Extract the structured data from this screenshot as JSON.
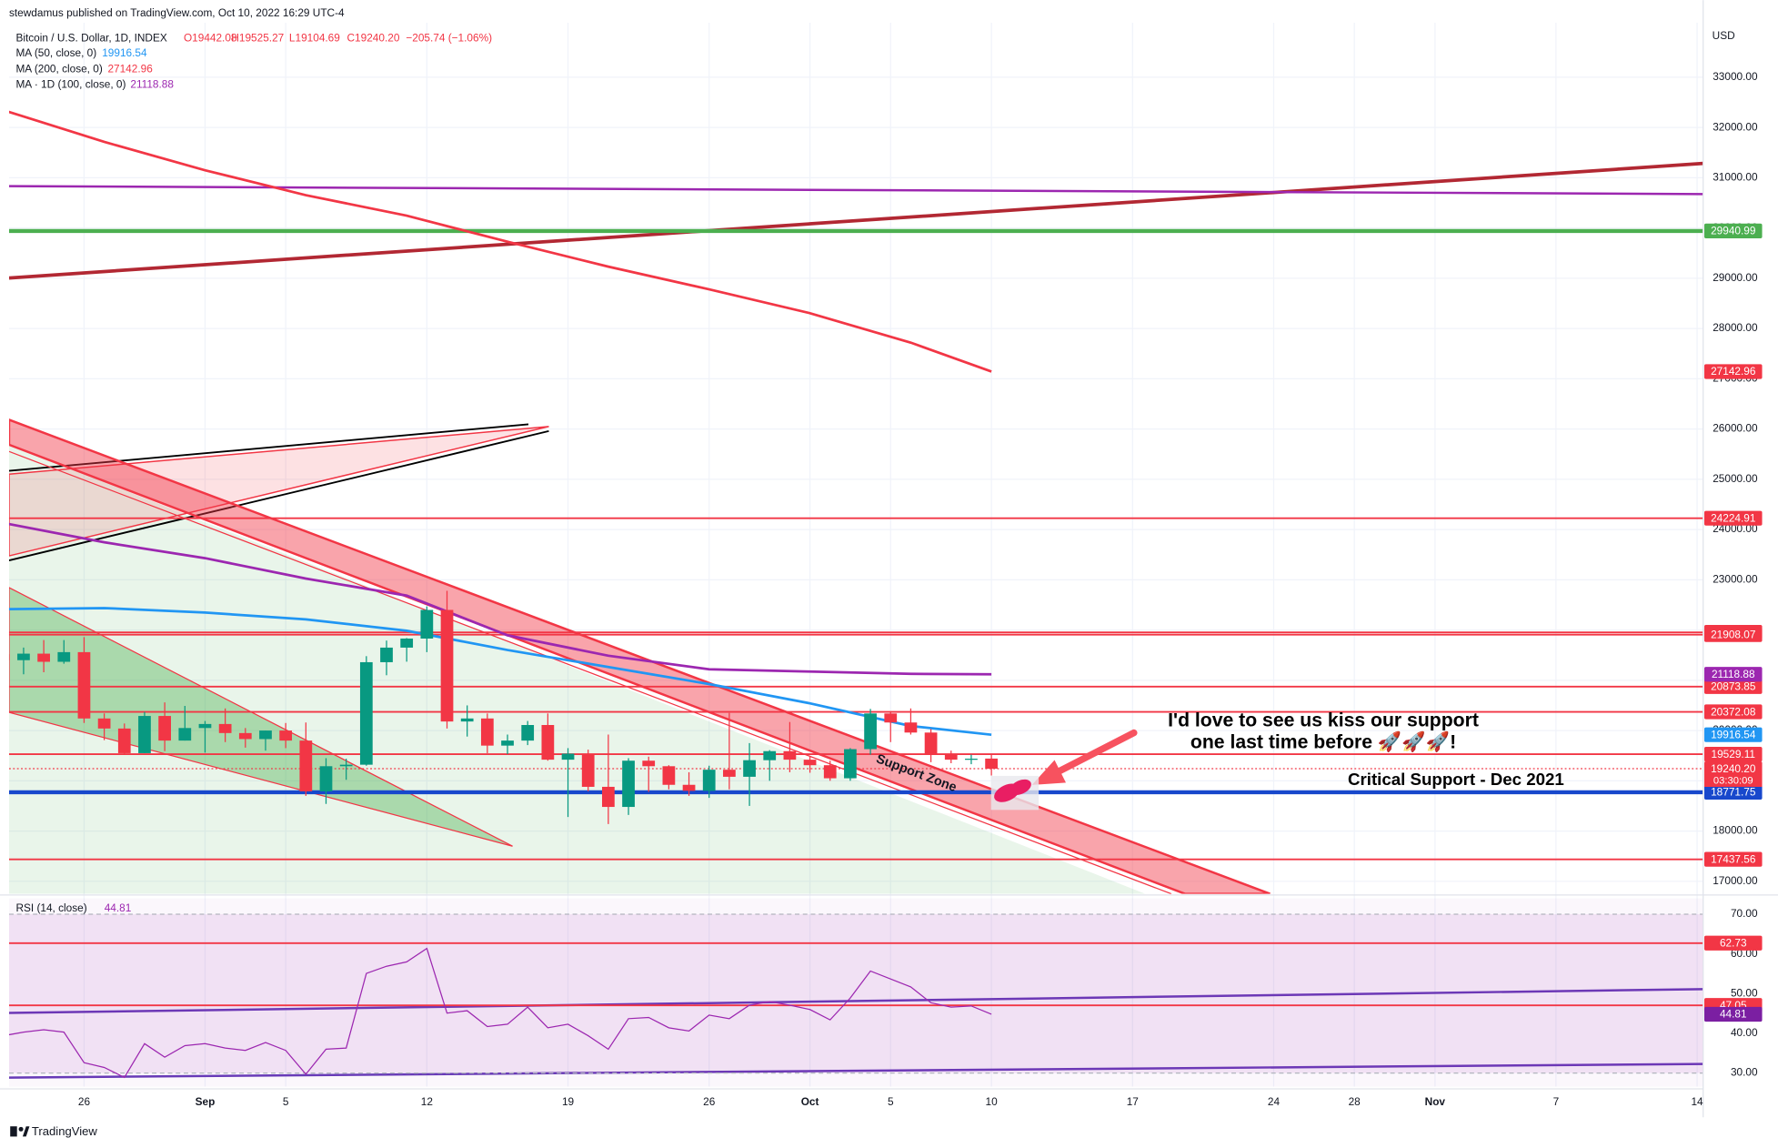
{
  "chart_data": {
    "type": "candlestick",
    "publisher": "stewdamus published on TradingView.com, Oct 10, 2022 16:29 UTC-4",
    "title": "Bitcoin / U.S. Dollar, 1D, INDEX",
    "ohlc_header": [
      "O19442.08",
      "H19525.27",
      "L19104.69",
      "C19240.20",
      "−205.74 (−1.06%)"
    ],
    "currency": "USD",
    "up_color": "#089981",
    "down_color": "#f23645",
    "open": [
      21517,
      21400,
      21530,
      21368,
      21560,
      20240,
      20040,
      19550,
      20290,
      19800,
      20050,
      20130,
      19950,
      19830,
      20000,
      19800,
      18790,
      19290,
      19320,
      21360,
      21650,
      21830,
      22400,
      20180,
      20240,
      19700,
      19800,
      20110,
      19420,
      19540,
      18880,
      18480,
      19400,
      19290,
      18920,
      18800,
      19220,
      19080,
      19410,
      19590,
      19420,
      19310,
      19050,
      19630,
      20340,
      20160,
      19960,
      19530,
      19420,
      19442.08
    ],
    "high": [
      21695,
      21650,
      21800,
      21800,
      21860,
      20340,
      20140,
      20370,
      20560,
      20490,
      20190,
      20440,
      20050,
      20000,
      20150,
      20160,
      19450,
      19440,
      21480,
      21790,
      21840,
      22470,
      22780,
      20500,
      20340,
      19920,
      20190,
      20340,
      19650,
      19620,
      19920,
      19450,
      19480,
      19310,
      19170,
      19300,
      20350,
      19750,
      19610,
      20170,
      19480,
      19400,
      19650,
      20430,
      20370,
      20440,
      20030,
      19600,
      19520,
      19525.27
    ],
    "low": [
      20894,
      21120,
      21160,
      21330,
      20150,
      19810,
      19540,
      19550,
      19590,
      19800,
      19560,
      19770,
      19660,
      19600,
      19650,
      18700,
      18540,
      19020,
      19300,
      21100,
      21370,
      21560,
      20040,
      19880,
      19550,
      19530,
      19710,
      19400,
      18280,
      18790,
      18140,
      18320,
      18780,
      18830,
      18700,
      18660,
      18830,
      18500,
      19000,
      19170,
      19160,
      19000,
      19000,
      19520,
      19770,
      19920,
      19370,
      19350,
      19330,
      19104.69
    ],
    "close": [
      21400,
      21530,
      21368,
      21560,
      20240,
      20040,
      19550,
      20290,
      19800,
      20050,
      20130,
      19950,
      19830,
      20000,
      19800,
      18790,
      19290,
      19320,
      21360,
      21650,
      21830,
      22400,
      20180,
      20240,
      19700,
      19800,
      20110,
      19420,
      19540,
      18880,
      18480,
      19400,
      19290,
      18920,
      18800,
      19220,
      19080,
      19410,
      19590,
      19420,
      19310,
      19050,
      19630,
      20340,
      20160,
      19960,
      19530,
      19420,
      19440,
      19240.2
    ],
    "close_label": "19240.20",
    "countdown": "03:30:09",
    "series": [
      {
        "name": "MA (50, close, 0)",
        "color": "#2196f3",
        "x": [
          0,
          5,
          10,
          15,
          20,
          25,
          30,
          35,
          40,
          45,
          49
        ],
        "values": [
          22415,
          22437,
          22347,
          22212,
          21986,
          21602,
          21264,
          20925,
          20541,
          20090,
          19916.54
        ]
      },
      {
        "name": "MA (200, close, 0)",
        "color": "#f23645",
        "x": [
          0,
          5,
          10,
          15,
          20,
          25,
          30,
          35,
          40,
          45,
          49
        ],
        "values": [
          32345,
          31713,
          31149,
          30653,
          30246,
          29727,
          29231,
          28779,
          28305,
          27719,
          27142.96
        ]
      },
      {
        "name": "MA · 1D (100, close, 0)",
        "color": "#9c27b0",
        "x": [
          0,
          5,
          10,
          15,
          20,
          25,
          30,
          35,
          40,
          45,
          49
        ],
        "values": [
          24130,
          23746,
          23430,
          23024,
          22685,
          21895,
          21489,
          21218,
          21173,
          21128,
          21118.88
        ]
      }
    ],
    "levels": [
      {
        "value": 29940.99,
        "color": "#4caf50"
      },
      {
        "value": 24224.91,
        "color": "#f23645"
      },
      {
        "value": 21953.61,
        "color": "#f23645"
      },
      {
        "value": 21908.07,
        "color": "#f23645"
      },
      {
        "value": 20873.85,
        "color": "#f23645"
      },
      {
        "value": 20372.08,
        "color": "#f23645"
      },
      {
        "value": 19529.11,
        "color": "#f23645"
      },
      {
        "value": 18771.75,
        "color": "#1848cc"
      },
      {
        "value": 17437.56,
        "color": "#f23645"
      }
    ],
    "xlim": [
      0.28,
      84.3
    ],
    "xticks": [
      {
        "value": 4,
        "label": "26"
      },
      {
        "value": 10,
        "label": "Sep"
      },
      {
        "value": 14,
        "label": "5"
      },
      {
        "value": 21,
        "label": "12"
      },
      {
        "value": 28,
        "label": "19"
      },
      {
        "value": 35,
        "label": "26"
      },
      {
        "value": 40,
        "label": "Oct"
      },
      {
        "value": 44,
        "label": "5"
      },
      {
        "value": 49,
        "label": "10"
      },
      {
        "value": 56,
        "label": "17"
      },
      {
        "value": 63,
        "label": "24"
      },
      {
        "value": 67,
        "label": "28"
      },
      {
        "value": 71,
        "label": "Nov"
      },
      {
        "value": 77,
        "label": "7"
      },
      {
        "value": 84,
        "label": "14"
      }
    ],
    "ylim": [
      16773,
      33993
    ],
    "yticks": [
      {
        "value": 17000,
        "label": "17000.00"
      },
      {
        "value": 18000,
        "label": "18000.00"
      },
      {
        "value": 19000,
        "label": "19000.00"
      },
      {
        "value": 20000,
        "label": "20000.00"
      },
      {
        "value": 21000,
        "label": "21000.00"
      },
      {
        "value": 22000,
        "label": "22000.00"
      },
      {
        "value": 23000,
        "label": "23000.00"
      },
      {
        "value": 24000,
        "label": "24000.00"
      },
      {
        "value": 25000,
        "label": "25000.00"
      },
      {
        "value": 26000,
        "label": "26000.00"
      },
      {
        "value": 27000,
        "label": "27000.00"
      },
      {
        "value": 28000,
        "label": "28000.00"
      },
      {
        "value": 29000,
        "label": "29000.00"
      },
      {
        "value": 30000,
        "label": "30000.00"
      },
      {
        "value": 31000,
        "label": "31000.00"
      },
      {
        "value": 32000,
        "label": "32000.00"
      },
      {
        "value": 33000,
        "label": "33000.00"
      }
    ],
    "annotations": [
      "I'd love to see us kiss our support",
      "one last time before 🚀🚀🚀!",
      "Critical Support - Dec 2021",
      "Support Zone"
    ],
    "rsi": {
      "title": "RSI (14, close)",
      "color": "#9c27b0",
      "values": [
        39.4,
        40.3,
        40.9,
        40.3,
        32.6,
        31.4,
        28.9,
        37.4,
        34.0,
        36.9,
        37.4,
        36.3,
        35.7,
        37.7,
        35.7,
        29.7,
        36.0,
        36.3,
        55.1,
        56.9,
        58.0,
        61.4,
        45.1,
        45.7,
        41.7,
        42.3,
        46.6,
        41.4,
        42.3,
        39.4,
        36.0,
        43.7,
        44.0,
        41.4,
        40.6,
        44.6,
        43.7,
        47.1,
        48.0,
        47.1,
        46.0,
        43.4,
        48.9,
        55.7,
        53.7,
        51.7,
        47.7,
        46.6,
        46.9,
        44.81
      ],
      "band": [
        30,
        70
      ],
      "levels": [
        62.73,
        47.05
      ],
      "ylim": [
        26.57,
        74
      ],
      "yticks": [
        {
          "value": 30,
          "label": "30.00"
        },
        {
          "value": 40,
          "label": "40.00"
        },
        {
          "value": 50,
          "label": "50.00"
        },
        {
          "value": 60,
          "label": "60.00"
        },
        {
          "value": 70,
          "label": "70.00"
        }
      ]
    },
    "footer": "TradingView"
  }
}
